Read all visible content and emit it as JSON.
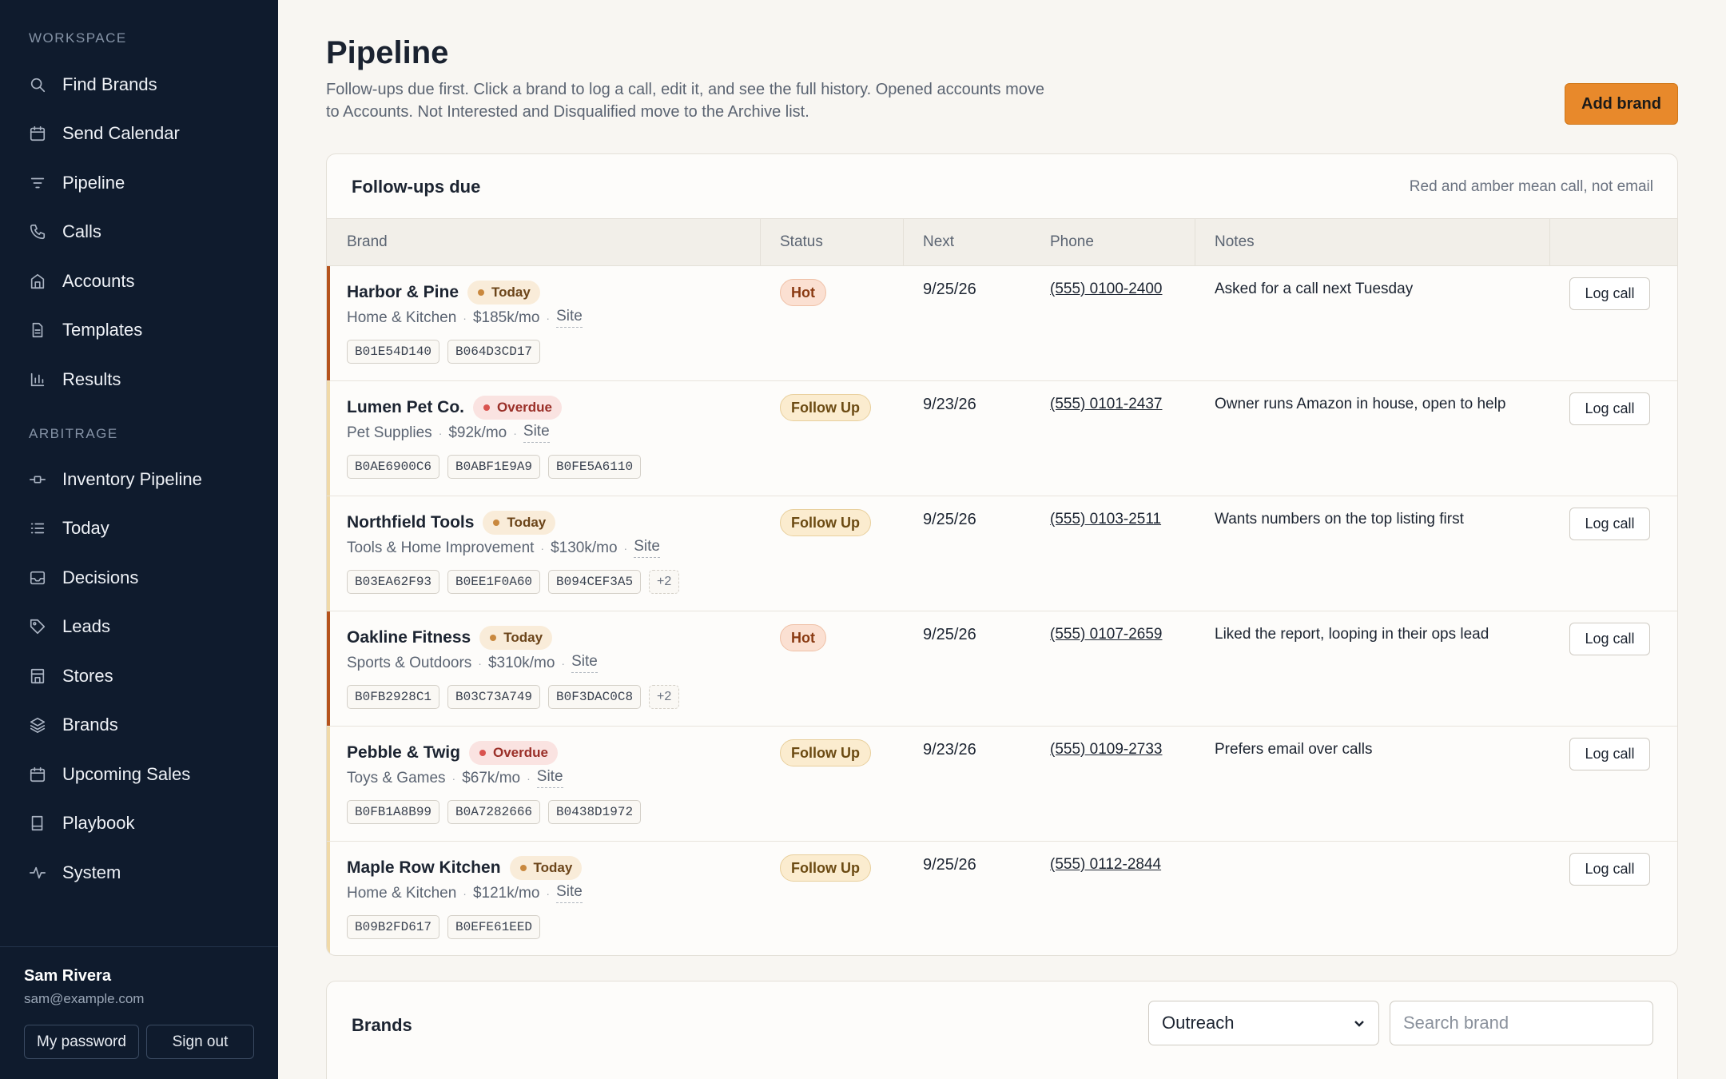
{
  "sidebar": {
    "workspace_title": "WORKSPACE",
    "workspace_items": [
      {
        "label": "Find Brands",
        "icon": "search-icon"
      },
      {
        "label": "Send Calendar",
        "icon": "calendar-icon"
      },
      {
        "label": "Pipeline",
        "icon": "filter-icon"
      },
      {
        "label": "Calls",
        "icon": "phone-icon"
      },
      {
        "label": "Accounts",
        "icon": "building-icon"
      },
      {
        "label": "Templates",
        "icon": "document-icon"
      },
      {
        "label": "Results",
        "icon": "bar-chart-icon"
      }
    ],
    "arbitrage_title": "ARBITRAGE",
    "arbitrage_items": [
      {
        "label": "Inventory Pipeline",
        "icon": "pipeline-icon"
      },
      {
        "label": "Today",
        "icon": "list-icon"
      },
      {
        "label": "Decisions",
        "icon": "inbox-icon"
      },
      {
        "label": "Leads",
        "icon": "tag-icon"
      },
      {
        "label": "Stores",
        "icon": "store-icon"
      },
      {
        "label": "Brands",
        "icon": "layers-icon"
      },
      {
        "label": "Upcoming Sales",
        "icon": "calendar-icon"
      },
      {
        "label": "Playbook",
        "icon": "book-icon"
      },
      {
        "label": "System",
        "icon": "activity-icon"
      }
    ],
    "user": {
      "name": "Sam Rivera",
      "email": "sam@example.com"
    },
    "password_button": "My password",
    "signout_button": "Sign out"
  },
  "header": {
    "title": "Pipeline",
    "description": "Follow-ups due first. Click a brand to log a call, edit it, and see the full history. Opened accounts move to Accounts. Not Interested and Disqualified move to the Archive list.",
    "add_button": "Add brand"
  },
  "followups": {
    "title": "Follow-ups due",
    "hint": "Red and amber mean call, not email",
    "columns": [
      "Brand",
      "Status",
      "Next",
      "Phone",
      "Notes"
    ],
    "log_label": "Log call",
    "site_label": "Site",
    "rows": [
      {
        "brand": "Harbor & Pine",
        "due": "Today",
        "category": "Home & Kitchen",
        "revenue": "$185k/mo",
        "chips": [
          "B01E54D140",
          "B064D3CD17"
        ],
        "more": "",
        "status": "Hot",
        "next": "9/25/26",
        "phone": "(555) 0100-2400",
        "note": "Asked for a call next Tuesday",
        "bar_color": "#b5531d"
      },
      {
        "brand": "Lumen Pet Co.",
        "due": "Overdue",
        "category": "Pet Supplies",
        "revenue": "$92k/mo",
        "chips": [
          "B0AE6900C6",
          "B0ABF1E9A9",
          "B0FE5A6110"
        ],
        "more": "",
        "status": "Follow Up",
        "next": "9/23/26",
        "phone": "(555) 0101-2437",
        "note": "Owner runs Amazon in house, open to help",
        "bar_color": "#f0d9a8"
      },
      {
        "brand": "Northfield Tools",
        "due": "Today",
        "category": "Tools & Home Improvement",
        "revenue": "$130k/mo",
        "chips": [
          "B03EA62F93",
          "B0EE1F0A60",
          "B094CEF3A5"
        ],
        "more": "+2",
        "status": "Follow Up",
        "next": "9/25/26",
        "phone": "(555) 0103-2511",
        "note": "Wants numbers on the top listing first",
        "bar_color": "#f0d9a8"
      },
      {
        "brand": "Oakline Fitness",
        "due": "Today",
        "category": "Sports & Outdoors",
        "revenue": "$310k/mo",
        "chips": [
          "B0FB2928C1",
          "B03C73A749",
          "B0F3DAC0C8"
        ],
        "more": "+2",
        "status": "Hot",
        "next": "9/25/26",
        "phone": "(555) 0107-2659",
        "note": "Liked the report, looping in their ops lead",
        "bar_color": "#b5531d"
      },
      {
        "brand": "Pebble & Twig",
        "due": "Overdue",
        "category": "Toys & Games",
        "revenue": "$67k/mo",
        "chips": [
          "B0FB1A8B99",
          "B0A7282666",
          "B0438D1972"
        ],
        "more": "",
        "status": "Follow Up",
        "next": "9/23/26",
        "phone": "(555) 0109-2733",
        "note": "Prefers email over calls",
        "bar_color": "#f0d9a8"
      },
      {
        "brand": "Maple Row Kitchen",
        "due": "Today",
        "category": "Home & Kitchen",
        "revenue": "$121k/mo",
        "chips": [
          "B09B2FD617",
          "B0EFE61EED"
        ],
        "more": "",
        "status": "Follow Up",
        "next": "9/25/26",
        "phone": "(555) 0112-2844",
        "note": "",
        "bar_color": "#f0d9a8"
      }
    ]
  },
  "brands_card": {
    "title": "Brands",
    "filter_value": "Outreach",
    "search_placeholder": "Search brand"
  }
}
